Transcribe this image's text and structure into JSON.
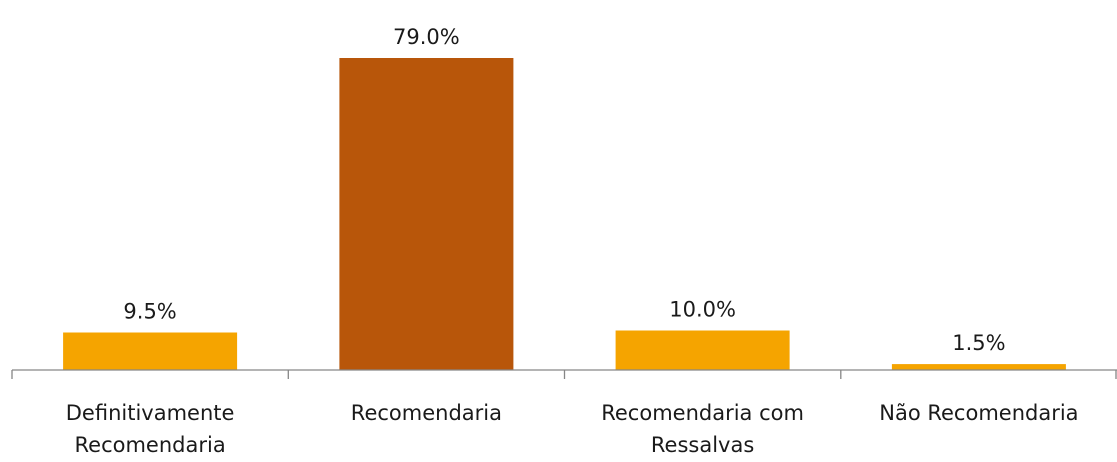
{
  "chart_data": {
    "type": "bar",
    "categories": [
      [
        "Definitivamente",
        "Recomendaria"
      ],
      [
        "Recomendaria"
      ],
      [
        "Recomendaria com",
        "Ressalvas"
      ],
      [
        "Não Recomendaria"
      ]
    ],
    "values": [
      9.5,
      79.0,
      10.0,
      1.5
    ],
    "value_labels": [
      "9.5%",
      "79.0%",
      "10.0%",
      "1.5%"
    ],
    "bar_colors": [
      "#f5a400",
      "#b8560a",
      "#f5a400",
      "#f5a400"
    ],
    "ylim": [
      0,
      79.0
    ],
    "grid": false,
    "legend": "none",
    "axis_color": "#868686"
  }
}
